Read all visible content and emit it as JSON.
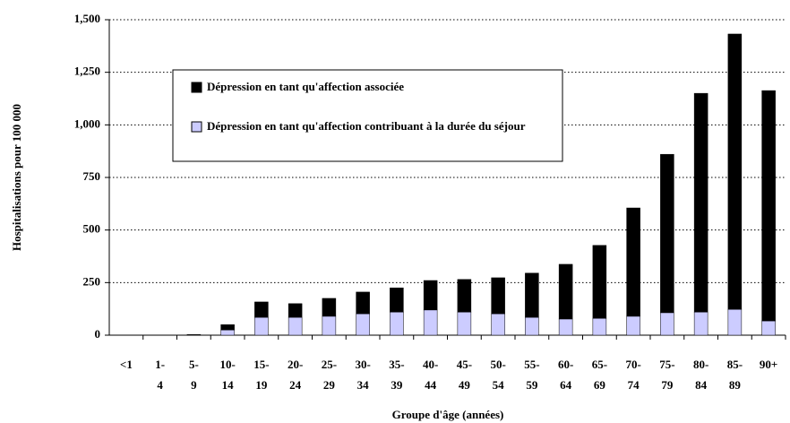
{
  "chart_data": {
    "type": "stacked_bar",
    "x_label": "Groupe d'âge (années)",
    "y_label": "Hospitalisations pour 100 000",
    "categories": [
      "<1",
      "1-4",
      "5-9",
      "10-14",
      "15-19",
      "20-24",
      "25-29",
      "30-34",
      "35-39",
      "40-44",
      "45-49",
      "50-54",
      "55-59",
      "60-64",
      "65-69",
      "70-74",
      "75-79",
      "80-84",
      "85-89",
      "90+"
    ],
    "series": [
      {
        "name": "Dépression en tant qu'affection associée",
        "color": "#000000",
        "values": [
          0,
          0,
          2,
          25,
          73,
          65,
          85,
          103,
          115,
          140,
          155,
          171,
          210,
          260,
          347,
          515,
          753,
          1040,
          1309,
          1095
        ]
      },
      {
        "name": "Dépression en tant qu'affection contribuant à la durée du séjour",
        "color": "#ccccff",
        "values": [
          0,
          0,
          1,
          25,
          85,
          85,
          90,
          102,
          110,
          120,
          110,
          102,
          85,
          77,
          80,
          90,
          107,
          110,
          123,
          68
        ]
      }
    ],
    "ylim": [
      0,
      1500
    ],
    "yticks": [
      0,
      250,
      500,
      750,
      {
        "value": 1000,
        "label": "1,000"
      },
      {
        "value": 1250,
        "label": "1,250"
      },
      {
        "value": 1500,
        "label": "1,500"
      }
    ],
    "grid": true
  }
}
